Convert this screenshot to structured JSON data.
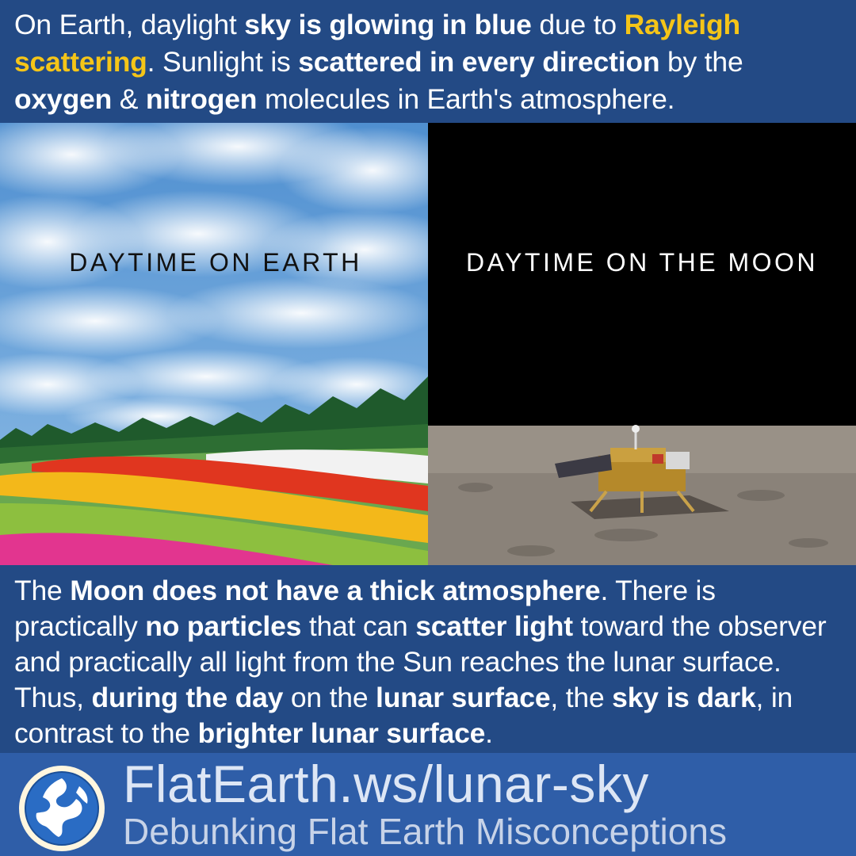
{
  "intro": {
    "t1": "On Earth, daylight ",
    "b1": "sky is glowing in blue",
    "t2": " due to ",
    "h1": "Rayleigh scattering",
    "t3": ". Sunlight is ",
    "b2": "scattered in every direction",
    "t4": " by the ",
    "b3": "oxygen",
    "t5": " & ",
    "b4": "nitrogen",
    "t6": " molecules in Earth's atmosphere."
  },
  "photos": {
    "earth_label": "DAYTIME ON EARTH",
    "moon_label": "DAYTIME ON THE MOON"
  },
  "explanation": {
    "t1": "The ",
    "b1": "Moon does not have a thick atmosphere",
    "t2": ". There is practically ",
    "b2": "no particles",
    "t3": " that can ",
    "b3": "scatter light",
    "t4": " toward the observer and practically all light from the Sun reaches the lunar surface. Thus, ",
    "b4": "during the day",
    "t5": " on the ",
    "b5": "lunar surface",
    "t6": ", the ",
    "b6": "sky is dark",
    "t7": ", in contrast to the ",
    "b7": "brighter lunar surface",
    "t8": "."
  },
  "footer": {
    "title": "FlatEarth.ws/lunar-sky",
    "subtitle": "Debunking Flat Earth Misconceptions",
    "logo_icon": "globe-logo-icon"
  },
  "colors": {
    "panel_bg": "#234a85",
    "footer_bg": "#2f5ea8",
    "highlight": "#f5c518"
  }
}
